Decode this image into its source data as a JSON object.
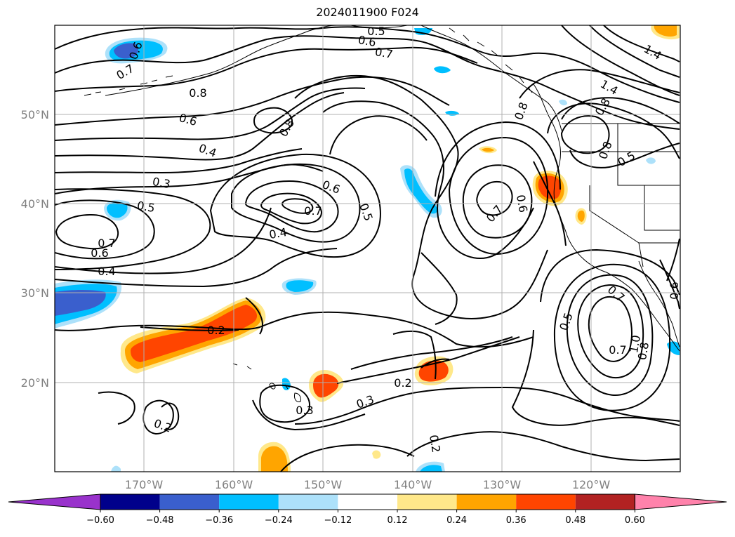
{
  "title": "2024011900 F024",
  "latitude_labels": [
    "50°N",
    "40°N",
    "30°N",
    "20°N"
  ],
  "longitude_labels": [
    "170°W",
    "160°W",
    "150°W",
    "140°W",
    "130°W",
    "120°W"
  ],
  "contour_labels": [
    "0.5",
    "0.6",
    "0.7",
    "0.6",
    "0.7",
    "0.8",
    "0.6",
    "0.4",
    "0.8",
    "1.4",
    "1.4",
    "0.8",
    "0.8",
    "0.8",
    "0.5",
    "0.3",
    "0.5",
    "0.6",
    "0.7",
    "0.4",
    "0.5",
    "0.7",
    "0.6",
    "0.7",
    "0.6",
    "0.4",
    "0.2",
    "0.2",
    "0.3",
    "0.3",
    "0.2",
    "0.2",
    "0.5",
    "0.7",
    "0.7",
    "1.0",
    "0.8",
    "0.6"
  ],
  "colorbar": {
    "ticks": [
      "−0.60",
      "−0.48",
      "−0.36",
      "−0.24",
      "−0.12",
      "0.12",
      "0.24",
      "0.36",
      "0.48",
      "0.60"
    ],
    "colors": [
      "#9932CC",
      "#00008B",
      "#3A5FCD",
      "#00BFFF",
      "#ADE1FA",
      "#FFFFFF",
      "#FFE88A",
      "#FFA500",
      "#FF4500",
      "#B22222",
      "#FF82AB"
    ]
  },
  "fill_colors": {
    "blue_dark": "#3A5FCD",
    "blue_mid": "#00BFFF",
    "blue_light": "#ADE1FA",
    "yellow_light": "#FFE88A",
    "orange": "#FFA500",
    "red_orange": "#FF4500"
  }
}
